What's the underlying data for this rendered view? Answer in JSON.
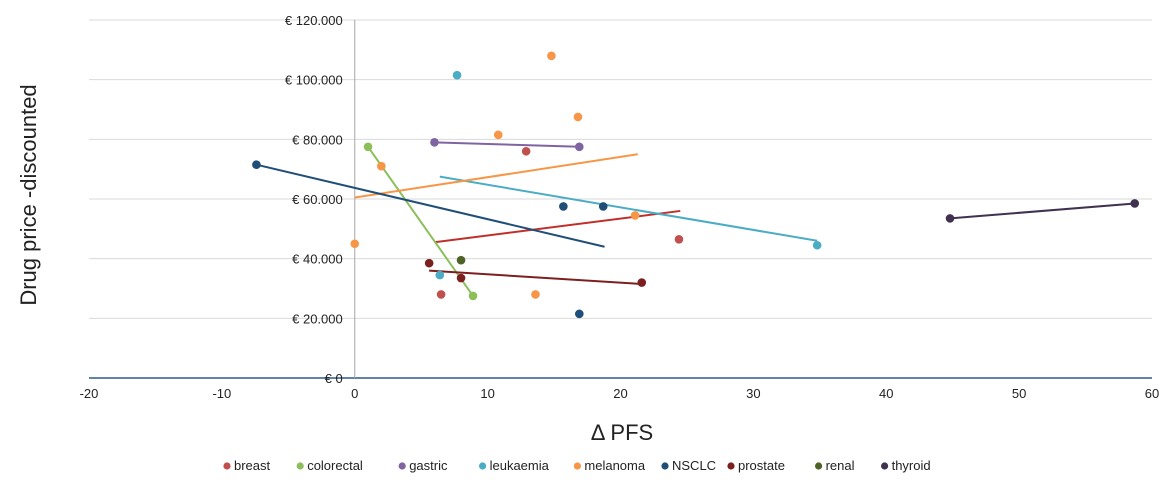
{
  "chart_data": {
    "type": "scatter",
    "xlabel": "Δ PFS",
    "ylabel": "Drug price -discounted",
    "xlim": [
      -20,
      60
    ],
    "ylim": [
      0,
      120000
    ],
    "x_ticks": [
      -20,
      -10,
      0,
      10,
      20,
      30,
      40,
      50,
      60
    ],
    "x_tick_labels": [
      "-20",
      "-10",
      "0",
      "10",
      "20",
      "30",
      "40",
      "50",
      "60"
    ],
    "y_ticks": [
      0,
      20000,
      40000,
      60000,
      80000,
      100000,
      120000
    ],
    "y_tick_labels": [
      "€ 0",
      "€ 20.000",
      "€ 40.000",
      "€ 60.000",
      "€ 80.000",
      "€ 100.000",
      "€ 120.000"
    ],
    "grid": "horizontal",
    "legend_position": "bottom",
    "series": [
      {
        "name": "breast",
        "color": "#c0504d",
        "points": [
          [
            6.5,
            28000
          ],
          [
            12.9,
            76000
          ],
          [
            24.4,
            46500
          ]
        ],
        "trend": [
          [
            6.0,
            45500
          ],
          [
            24.5,
            56000
          ]
        ],
        "trend_color": "#c0302b"
      },
      {
        "name": "colorectal",
        "color": "#8cbf5a",
        "points": [
          [
            1.0,
            77500
          ],
          [
            8.9,
            27500
          ]
        ],
        "trend": [
          [
            1.0,
            77500
          ],
          [
            8.9,
            27500
          ]
        ],
        "trend_color": "#8cbf5a"
      },
      {
        "name": "gastric",
        "color": "#8064a2",
        "points": [
          [
            6.0,
            79000
          ],
          [
            16.9,
            77500
          ]
        ],
        "trend": [
          [
            6.0,
            79000
          ],
          [
            16.9,
            77500
          ]
        ],
        "trend_color": "#8064a2"
      },
      {
        "name": "leukaemia",
        "color": "#4bacc6",
        "points": [
          [
            7.7,
            101500
          ],
          [
            6.4,
            34500
          ],
          [
            34.8,
            44500
          ]
        ],
        "trend": [
          [
            6.4,
            67500
          ],
          [
            34.8,
            46000
          ]
        ],
        "trend_color": "#4bacc6"
      },
      {
        "name": "melanoma",
        "color": "#f79646",
        "points": [
          [
            0.0,
            45000
          ],
          [
            2.0,
            71000
          ],
          [
            10.8,
            81500
          ],
          [
            14.8,
            108000
          ],
          [
            16.8,
            87500
          ],
          [
            21.1,
            54500
          ],
          [
            13.6,
            28000
          ]
        ],
        "trend": [
          [
            0.0,
            60500
          ],
          [
            21.3,
            75000
          ]
        ],
        "trend_color": "#f79646"
      },
      {
        "name": "NSCLC",
        "color": "#1f4e79",
        "points": [
          [
            -7.4,
            71500
          ],
          [
            15.7,
            57500
          ],
          [
            18.7,
            57500
          ],
          [
            16.9,
            21500
          ]
        ],
        "trend": [
          [
            -7.4,
            71500
          ],
          [
            18.8,
            44000
          ]
        ],
        "trend_color": "#1f4e79"
      },
      {
        "name": "prostate",
        "color": "#7b1f1f",
        "points": [
          [
            5.6,
            38500
          ],
          [
            8.0,
            33500
          ],
          [
            21.6,
            32000
          ]
        ],
        "trend": [
          [
            5.6,
            36000
          ],
          [
            21.6,
            31500
          ]
        ],
        "trend_color": "#7b1f1f"
      },
      {
        "name": "renal",
        "color": "#4f6228",
        "points": [
          [
            8.0,
            39500
          ]
        ],
        "trend": null,
        "trend_color": "#4f6228"
      },
      {
        "name": "thyroid",
        "color": "#403151",
        "points": [
          [
            44.8,
            53500
          ],
          [
            58.7,
            58500
          ]
        ],
        "trend": [
          [
            44.8,
            53500
          ],
          [
            58.7,
            58500
          ]
        ],
        "trend_color": "#403151"
      }
    ]
  }
}
